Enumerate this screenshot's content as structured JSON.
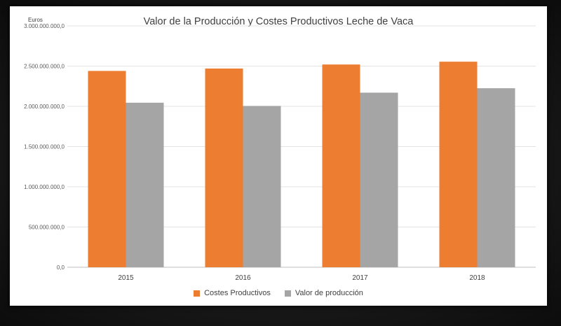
{
  "chart_data": {
    "type": "bar",
    "title": "Valor de la Producción y Costes Productivos Leche de Vaca",
    "ylabel": "Euros",
    "xlabel": "",
    "categories": [
      "2015",
      "2016",
      "2017",
      "2018"
    ],
    "series": [
      {
        "name": "Costes Productivos",
        "color": "#ED7D31",
        "values": [
          2440000000,
          2470000000,
          2520000000,
          2555000000
        ]
      },
      {
        "name": "Valor de producción",
        "color": "#A5A5A5",
        "values": [
          2045000000,
          2005000000,
          2170000000,
          2225000000
        ]
      }
    ],
    "ylim": [
      0,
      3000000000
    ],
    "yticks": [
      0,
      500000000,
      1000000000,
      1500000000,
      2000000000,
      2500000000,
      3000000000
    ],
    "ytick_labels": [
      "0,0",
      "500.000.000,0",
      "1.000.000.000,0",
      "1.500.000.000,0",
      "2.000.000.000,0",
      "2.500.000.000,0",
      "3.000.000.000,0"
    ],
    "grid": true,
    "legend_position": "bottom"
  }
}
